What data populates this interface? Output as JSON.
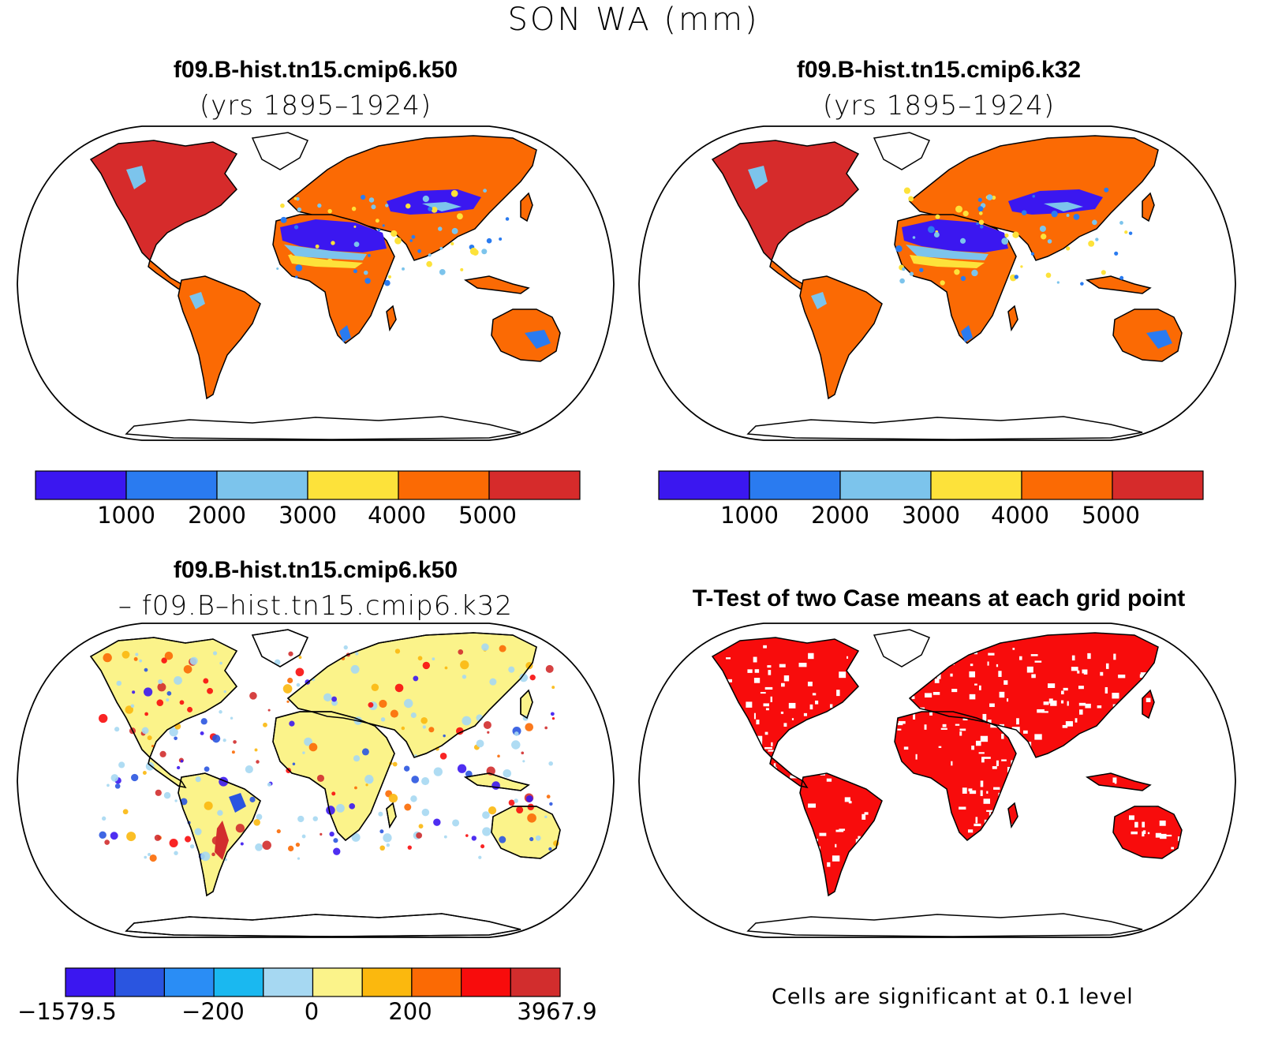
{
  "figure": {
    "title": "SON WA (mm)"
  },
  "panels": [
    {
      "title": "f09.B-hist.tn15.cmip6.k50",
      "subtitle": "(yrs 1895–1924)",
      "colorbar": {
        "colors": [
          "#3b17f0",
          "#2a7bf0",
          "#7cc4ec",
          "#fde23a",
          "#fb6a04",
          "#d62b2b"
        ],
        "tick_labels": [
          "1000",
          "2000",
          "3000",
          "4000",
          "5000"
        ]
      }
    },
    {
      "title": "f09.B-hist.tn15.cmip6.k32",
      "subtitle": "(yrs 1895–1924)",
      "colorbar": {
        "colors": [
          "#3b17f0",
          "#2a7bf0",
          "#7cc4ec",
          "#fde23a",
          "#fb6a04",
          "#d62b2b"
        ],
        "tick_labels": [
          "1000",
          "2000",
          "3000",
          "4000",
          "5000"
        ]
      }
    },
    {
      "title": "f09.B-hist.tn15.cmip6.k50",
      "subtitle": "– f09.B–hist.tn15.cmip6.k32",
      "colorbar": {
        "colors": [
          "#3b17f0",
          "#2a55e0",
          "#2a8df5",
          "#1ab8f0",
          "#a6d8f2",
          "#fbf38a",
          "#fbb80e",
          "#fb6a04",
          "#f80c0c",
          "#d22d2d"
        ],
        "tick_labels": [
          "−1579.5",
          "−200",
          "0",
          "200",
          "3967.9"
        ]
      }
    },
    {
      "title": "T-Test of two Case means at each grid point",
      "note": "Cells are significant at 0.1 level"
    }
  ]
}
